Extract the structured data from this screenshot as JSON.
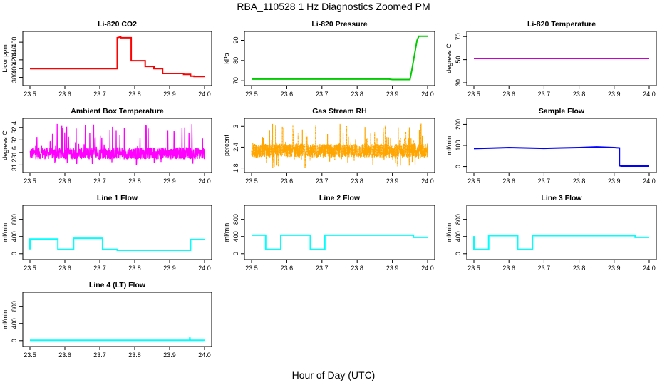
{
  "figure": {
    "title": "RBA_110528  1 Hz Diagnostics Zoomed PM",
    "xlabel": "Hour of Day (UTC)"
  },
  "chart_data": [
    {
      "type": "line",
      "title": "Li-820 CO2",
      "ylabel": "Licor ppm",
      "color": "#ff0000",
      "xlim": [
        23.5,
        24.0
      ],
      "ylim": [
        368,
        478
      ],
      "xticks": [
        "23.5",
        "23.6",
        "23.7",
        "23.8",
        "23.9",
        "24.0"
      ],
      "yticks": [
        380,
        400,
        420,
        440,
        460
      ],
      "series": [
        {
          "name": "CO2",
          "x": [
            23.5,
            23.75,
            23.75,
            23.76,
            23.76,
            23.79,
            23.79,
            23.82,
            23.82,
            23.83,
            23.83,
            23.855,
            23.855,
            23.88,
            23.88,
            23.94,
            23.94,
            23.96,
            23.96,
            23.97,
            23.97,
            24.0
          ],
          "y": [
            400,
            400,
            470,
            472,
            470,
            470,
            418,
            418,
            418,
            418,
            405,
            405,
            400,
            400,
            389,
            389,
            387,
            387,
            383,
            383,
            382,
            382
          ]
        }
      ]
    },
    {
      "type": "line",
      "title": "Li-820 Pressure",
      "ylabel": "kPa",
      "color": "#00cc00",
      "xlim": [
        23.5,
        24.0
      ],
      "ylim": [
        69,
        93
      ],
      "xticks": [
        "23.5",
        "23.6",
        "23.7",
        "23.8",
        "23.9",
        "24.0"
      ],
      "yticks": [
        70,
        80,
        90
      ],
      "series": [
        {
          "name": "Pressure",
          "x": [
            23.5,
            23.89,
            23.9,
            23.95,
            23.955,
            23.97,
            23.975,
            24.0
          ],
          "y": [
            70.8,
            70.8,
            70.6,
            70.6,
            75,
            90,
            92,
            92
          ]
        }
      ]
    },
    {
      "type": "line",
      "title": "Li-820 Temperature",
      "ylabel": "degrees C",
      "color": "#cc00cc",
      "xlim": [
        23.5,
        24.0
      ],
      "ylim": [
        30,
        72
      ],
      "xticks": [
        "23.5",
        "23.6",
        "23.7",
        "23.8",
        "23.9",
        "24.0"
      ],
      "yticks": [
        30,
        50,
        70
      ],
      "series": [
        {
          "name": "Temperature",
          "x": [
            23.5,
            24.0
          ],
          "y": [
            51,
            51
          ]
        }
      ]
    },
    {
      "type": "line",
      "title": "Ambient Box Temperature",
      "ylabel": "degrees C",
      "color": "#ff00ff",
      "xlim": [
        23.5,
        24.0
      ],
      "ylim": [
        31.05,
        32.6
      ],
      "xticks": [
        "23.5",
        "23.6",
        "23.7",
        "23.8",
        "23.9",
        "24.0"
      ],
      "yticks": [
        31.2,
        31.6,
        32.0,
        32.4
      ],
      "noise": {
        "base": 31.57,
        "amp": 0.19,
        "spike_up": 32.52,
        "spike_down": 31.18,
        "n": 900
      },
      "series": [
        {
          "name": "Box Temp",
          "x": [
            23.5,
            24.0
          ],
          "y": [
            31.57,
            31.57
          ]
        }
      ]
    },
    {
      "type": "scatter",
      "title": "Gas Stream RH",
      "ylabel": "percent",
      "color": "#ffa500",
      "xlim": [
        23.5,
        24.0
      ],
      "ylim": [
        1.75,
        3.15
      ],
      "xticks": [
        "23.5",
        "23.6",
        "23.7",
        "23.8",
        "23.9",
        "24.0"
      ],
      "yticks": [
        1.8,
        2.4,
        3.0
      ],
      "noise": {
        "base": 2.3,
        "amp": 0.2,
        "spike_up": 3.08,
        "spike_down": 1.8,
        "n": 1500
      },
      "series": [
        {
          "name": "RH",
          "x": [
            23.5,
            24.0
          ],
          "y": [
            2.3,
            2.3
          ]
        }
      ]
    },
    {
      "type": "line",
      "title": "Sample Flow",
      "ylabel": "ml/min",
      "color": "#0000ff",
      "xlim": [
        23.5,
        24.0
      ],
      "ylim": [
        -15,
        215
      ],
      "xticks": [
        "23.5",
        "23.6",
        "23.7",
        "23.8",
        "23.9",
        "24.0"
      ],
      "yticks": [
        0,
        100,
        200
      ],
      "series": [
        {
          "name": "Sample Flow",
          "x": [
            23.5,
            23.55,
            23.6,
            23.7,
            23.75,
            23.8,
            23.85,
            23.9,
            23.915,
            23.915,
            23.92,
            24.0
          ],
          "y": [
            85,
            87,
            90,
            86,
            88,
            90,
            93,
            90,
            88,
            4,
            2,
            2
          ]
        }
      ]
    },
    {
      "type": "line",
      "title": "Line 1 Flow",
      "ylabel": "ml/min",
      "color": "#00ffff",
      "xlim": [
        23.5,
        24.0
      ],
      "ylim": [
        -70,
        1060
      ],
      "xticks": [
        "23.5",
        "23.6",
        "23.7",
        "23.8",
        "23.9",
        "24.0"
      ],
      "yticks": [
        0,
        400,
        800
      ],
      "series": [
        {
          "name": "Line 1",
          "x": [
            23.5,
            23.5,
            23.58,
            23.58,
            23.625,
            23.625,
            23.708,
            23.708,
            23.75,
            23.75,
            23.96,
            23.96,
            24.0
          ],
          "y": [
            100,
            340,
            340,
            100,
            100,
            360,
            360,
            100,
            100,
            80,
            80,
            330,
            330
          ]
        }
      ]
    },
    {
      "type": "line",
      "title": "Line 2 Flow",
      "ylabel": "ml/min",
      "color": "#00ffff",
      "xlim": [
        23.5,
        24.0
      ],
      "ylim": [
        -70,
        1060
      ],
      "xticks": [
        "23.5",
        "23.6",
        "23.7",
        "23.8",
        "23.9",
        "24.0"
      ],
      "yticks": [
        0,
        400,
        800
      ],
      "series": [
        {
          "name": "Line 2",
          "x": [
            23.5,
            23.54,
            23.54,
            23.583,
            23.583,
            23.667,
            23.667,
            23.708,
            23.708,
            23.96,
            23.96,
            24.0
          ],
          "y": [
            430,
            430,
            100,
            100,
            430,
            430,
            100,
            100,
            430,
            430,
            380,
            380
          ]
        }
      ]
    },
    {
      "type": "line",
      "title": "Line 3 Flow",
      "ylabel": "ml/min",
      "color": "#00ffff",
      "xlim": [
        23.5,
        24.0
      ],
      "ylim": [
        -70,
        1060
      ],
      "xticks": [
        "23.5",
        "23.6",
        "23.7",
        "23.8",
        "23.9",
        "24.0"
      ],
      "yticks": [
        0,
        400,
        800
      ],
      "series": [
        {
          "name": "Line 3",
          "x": [
            23.5,
            23.5,
            23.542,
            23.542,
            23.625,
            23.625,
            23.667,
            23.667,
            23.96,
            23.96,
            24.0
          ],
          "y": [
            410,
            100,
            100,
            420,
            420,
            100,
            100,
            420,
            420,
            380,
            380
          ]
        }
      ]
    },
    {
      "type": "line",
      "title": "Line 4 (LT) Flow",
      "ylabel": "ml/min",
      "color": "#00ffff",
      "xlim": [
        23.5,
        24.0
      ],
      "ylim": [
        -70,
        1060
      ],
      "xticks": [
        "23.5",
        "23.6",
        "23.7",
        "23.8",
        "23.9",
        "24.0"
      ],
      "yticks": [
        0,
        400,
        800
      ],
      "series": [
        {
          "name": "Line 4",
          "x": [
            23.5,
            23.957,
            23.958,
            23.959,
            23.96,
            24.0
          ],
          "y": [
            10,
            10,
            80,
            15,
            10,
            10
          ]
        }
      ]
    }
  ]
}
